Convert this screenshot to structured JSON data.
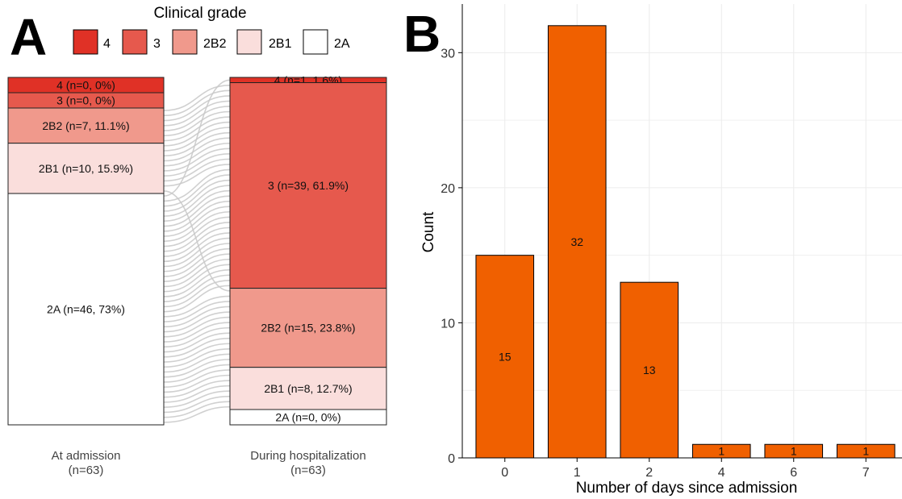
{
  "panel_a": {
    "letter": "A",
    "legend": {
      "title": "Clinical grade",
      "entries": [
        {
          "label": "4",
          "color": "#e03126"
        },
        {
          "label": "3",
          "color": "#e6594d"
        },
        {
          "label": "2B2",
          "color": "#f0998c"
        },
        {
          "label": "2B1",
          "color": "#fadedc"
        },
        {
          "label": "2A",
          "color": "#ffffff"
        }
      ]
    }
  },
  "panel_b": {
    "letter": "B"
  },
  "chart_data": [
    {
      "type": "alluvial",
      "total": 63,
      "axes": [
        {
          "label": "At admission",
          "sublabel": "(n=63)",
          "strata": [
            {
              "grade": "4",
              "n": 0,
              "label": "4 (n=0, 0%)"
            },
            {
              "grade": "3",
              "n": 0,
              "label": "3 (n=0, 0%)"
            },
            {
              "grade": "2B2",
              "n": 7,
              "label": "2B2 (n=7, 11.1%)"
            },
            {
              "grade": "2B1",
              "n": 10,
              "label": "2B1 (n=10, 15.9%)"
            },
            {
              "grade": "2A",
              "n": 46,
              "label": "2A (n=46, 73%)"
            }
          ]
        },
        {
          "label": "During hospitalization",
          "sublabel": "(n=63)",
          "strata": [
            {
              "grade": "4",
              "n": 1,
              "label": "4 (n=1, 1.6%)"
            },
            {
              "grade": "3",
              "n": 39,
              "label": "3 (n=39, 61.9%)"
            },
            {
              "grade": "2B2",
              "n": 15,
              "label": "2B2 (n=15, 23.8%)"
            },
            {
              "grade": "2B1",
              "n": 8,
              "label": "2B1 (n=8, 12.7%)"
            },
            {
              "grade": "2A",
              "n": 0,
              "label": "2A (n=0, 0%)"
            }
          ]
        }
      ],
      "flows": [
        {
          "from": "2B2",
          "to": "3",
          "n": 7
        },
        {
          "from": "2B1",
          "to": "3",
          "n": 9
        },
        {
          "from": "2B1",
          "to": "2B2",
          "n": 1
        },
        {
          "from": "2A",
          "to": "4",
          "n": 1
        },
        {
          "from": "2A",
          "to": "3",
          "n": 23
        },
        {
          "from": "2A",
          "to": "2B2",
          "n": 14
        },
        {
          "from": "2A",
          "to": "2B1",
          "n": 8
        }
      ]
    },
    {
      "type": "bar",
      "categories": [
        "0",
        "1",
        "2",
        "4",
        "6",
        "7"
      ],
      "values": [
        15,
        32,
        13,
        1,
        1,
        1
      ],
      "xlabel": "Number of days since admission",
      "ylabel": "Count",
      "ylim": [
        0,
        33.6
      ],
      "yticks": [
        0,
        10,
        20,
        30
      ],
      "bar_color": "#f06000",
      "grid": true
    }
  ]
}
